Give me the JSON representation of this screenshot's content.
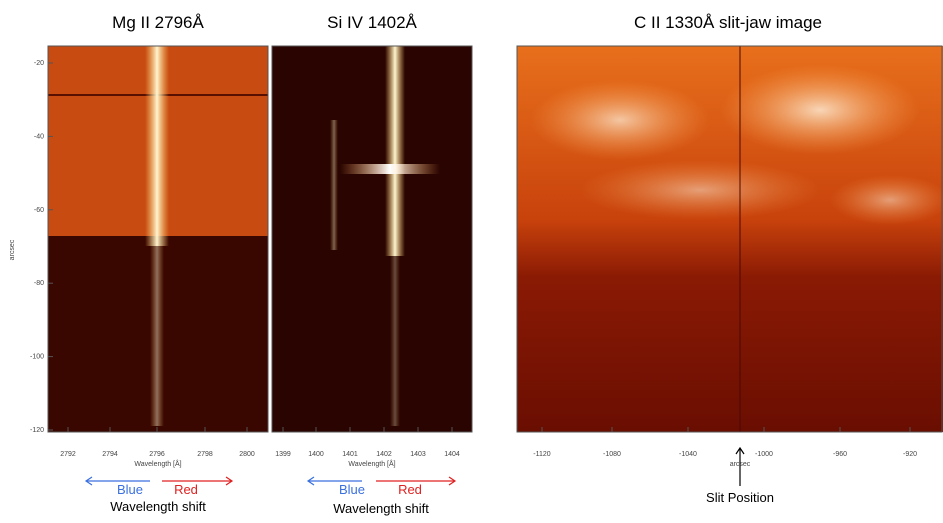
{
  "panels": [
    {
      "title": "Mg II 2796Å",
      "xticks": [
        "2792",
        "2794",
        "2796",
        "2798",
        "2800"
      ],
      "xlabel": "Wavelength [Å]",
      "yticks": [
        "-20",
        "-40",
        "-60",
        "-80",
        "-100",
        "-120"
      ],
      "ylabel": "arcsec"
    },
    {
      "title": "Si IV 1402Å",
      "xticks": [
        "1399",
        "1400",
        "1401",
        "1402",
        "1403",
        "1404"
      ],
      "xlabel": "Wavelength [Å]"
    },
    {
      "title": "C II 1330Å slit-jaw image",
      "xticks": [
        "-1120",
        "-1080",
        "-1040",
        "-1000",
        "-960",
        "-920"
      ],
      "xlabel": "arcsec"
    }
  ],
  "annotations": {
    "mg_blue": "Blue",
    "mg_red": "Red",
    "mg_shift": "Wavelength shift",
    "si_blue": "Blue",
    "si_red": "Red",
    "si_shift": "Wavelength shift",
    "slit": "Slit Position"
  }
}
